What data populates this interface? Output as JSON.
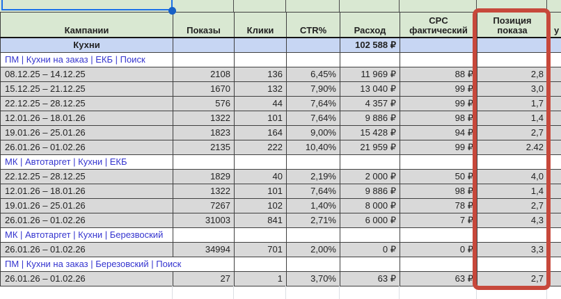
{
  "colors": {
    "header_bg": "#d9e8d2",
    "group_row_bg": "#c7d6f3",
    "data_row_bg": "#d9d9d9",
    "section_text": "#3434cf",
    "highlight_box": "#c7483b",
    "selection": "#1a6fe8"
  },
  "table": {
    "columns": [
      {
        "label": "Кампании"
      },
      {
        "label": "Показы"
      },
      {
        "label": "Клики"
      },
      {
        "label": "CTR%"
      },
      {
        "label": "Расход"
      },
      {
        "label": "CPC\nфактический"
      },
      {
        "label": "Позиция\nпоказа"
      },
      {
        "label": "у"
      }
    ],
    "rows": [
      {
        "type": "group",
        "campaign": "Кухни",
        "spend": "102 588 ₽"
      },
      {
        "type": "section",
        "campaign": "ПМ | Кухни на заказ | ЕКБ | Поиск"
      },
      {
        "type": "data",
        "campaign": "08.12.25 – 14.12.25",
        "impressions": "2108",
        "clicks": "136",
        "ctr": "6,45%",
        "spend": "11 969 ₽",
        "cpc": "88 ₽",
        "position": "2,8"
      },
      {
        "type": "data",
        "campaign": "15.12.25 – 21.12.25",
        "impressions": "1670",
        "clicks": "132",
        "ctr": "7,90%",
        "spend": "13 040 ₽",
        "cpc": "99 ₽",
        "position": "3,0"
      },
      {
        "type": "data",
        "campaign": "22.12.25 – 28.12.25",
        "impressions": "576",
        "clicks": "44",
        "ctr": "7,64%",
        "spend": "4 357 ₽",
        "cpc": "99 ₽",
        "position": "1,7"
      },
      {
        "type": "data",
        "campaign": "12.01.26 – 18.01.26",
        "impressions": "1322",
        "clicks": "101",
        "ctr": "7,64%",
        "spend": "9 886 ₽",
        "cpc": "98 ₽",
        "position": "1,4"
      },
      {
        "type": "data",
        "campaign": "19.01.26 – 25.01.26",
        "impressions": "1823",
        "clicks": "164",
        "ctr": "9,00%",
        "spend": "15 428 ₽",
        "cpc": "94 ₽",
        "position": "2,7"
      },
      {
        "type": "data",
        "campaign": "26.01.26 – 01.02.26",
        "impressions": "2135",
        "clicks": "222",
        "ctr": "10,40%",
        "spend": "21 959 ₽",
        "cpc": "99 ₽",
        "position": "2.42"
      },
      {
        "type": "section",
        "campaign": "МК | Автотаргет | Кухни | ЕКБ"
      },
      {
        "type": "data",
        "campaign": "22.12.25 – 28.12.25",
        "impressions": "1829",
        "clicks": "40",
        "ctr": "2,19%",
        "spend": "2 000 ₽",
        "cpc": "50 ₽",
        "position": "4,0"
      },
      {
        "type": "data",
        "campaign": "12.01.26 – 18.01.26",
        "impressions": "1322",
        "clicks": "101",
        "ctr": "7,64%",
        "spend": "9 886 ₽",
        "cpc": "98 ₽",
        "position": "1,4"
      },
      {
        "type": "data",
        "campaign": "19.01.26 – 25.01.26",
        "impressions": "7267",
        "clicks": "102",
        "ctr": "1,40%",
        "spend": "8 000 ₽",
        "cpc": "78 ₽",
        "position": "2,7"
      },
      {
        "type": "data",
        "campaign": "26.01.26 – 01.02.26",
        "impressions": "31003",
        "clicks": "841",
        "ctr": "2,71%",
        "spend": "6 000 ₽",
        "cpc": "7 ₽",
        "position": "4,3"
      },
      {
        "type": "section",
        "campaign": "МК | Автотаргет | Кухни | Березвоский"
      },
      {
        "type": "data",
        "campaign": "26.01.26 – 01.02.26",
        "impressions": "34994",
        "clicks": "701",
        "ctr": "2,00%",
        "spend": "0 ₽",
        "cpc": "0 ₽",
        "position": "3,3"
      },
      {
        "type": "section",
        "campaign": "ПМ | Кухни на заказ | Березовский | Поиск",
        "merge": true
      },
      {
        "type": "data",
        "campaign": "26.01.26 – 01.02.26",
        "impressions": "27",
        "clicks": "1",
        "ctr": "3,70%",
        "spend": "63 ₽",
        "cpc": "63 ₽",
        "position": "2,7"
      }
    ]
  }
}
